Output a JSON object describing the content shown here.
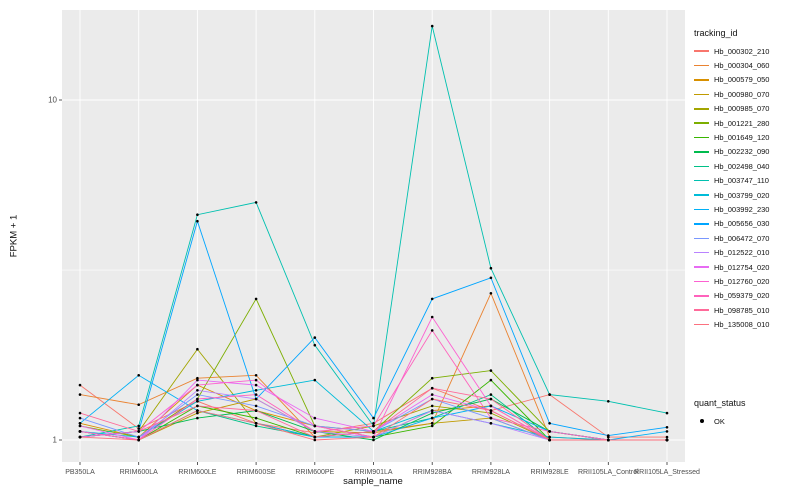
{
  "chart_data": {
    "type": "line",
    "title": "",
    "xlabel": "sample_name",
    "ylabel": "FPKM + 1",
    "yscale": "log10",
    "yticks": [
      1,
      10
    ],
    "y_minor": [
      3.162
    ],
    "ylim": [
      0.86,
      18.4
    ],
    "grid": true,
    "legend_position": "right",
    "colors": {
      "panel_bg": "#EBEBEB",
      "grid": "#FFFFFF",
      "point": "#000000",
      "tick": "#333333"
    },
    "legend": {
      "color_title": "tracking_id",
      "shape_title": "quant_status",
      "shape_items": [
        {
          "label": "OK"
        }
      ]
    },
    "categories": [
      "PB350LA",
      "RRIM600LA",
      "RRIM600LE",
      "RRIM600SE",
      "RRIM600PE",
      "RRIM901LA",
      "RRIM928BA",
      "RRIM928LA",
      "RRIM928LE",
      "RRII105LA_Control",
      "RRII105LA_Stressed"
    ],
    "series": [
      {
        "name": "Hb_000302_210",
        "color": "#F8766D",
        "values": [
          1.45,
          1.08,
          1.3,
          1.12,
          1.05,
          1.12,
          1.42,
          1.22,
          1.36,
          1.02,
          1.02
        ]
      },
      {
        "name": "Hb_000304_060",
        "color": "#EA8331",
        "values": [
          1.36,
          1.27,
          1.52,
          1.55,
          1.02,
          1.06,
          1.12,
          2.7,
          1.02,
          1.0,
          1.0
        ]
      },
      {
        "name": "Hb_000579_050",
        "color": "#D89000",
        "values": [
          1.12,
          1.02,
          1.45,
          1.22,
          1.1,
          1.02,
          1.22,
          1.26,
          1.0,
          1.0,
          1.0
        ]
      },
      {
        "name": "Hb_000980_070",
        "color": "#C09B00",
        "values": [
          1.06,
          1.0,
          1.2,
          1.32,
          1.06,
          1.05,
          1.12,
          1.16,
          1.0,
          1.0,
          1.0
        ]
      },
      {
        "name": "Hb_000985_070",
        "color": "#A3A500",
        "values": [
          1.02,
          1.06,
          1.85,
          1.12,
          1.02,
          1.1,
          1.26,
          1.2,
          1.0,
          1.0,
          1.0
        ]
      },
      {
        "name": "Hb_001221_280",
        "color": "#7CAE00",
        "values": [
          1.1,
          1.02,
          1.32,
          2.6,
          1.1,
          1.06,
          1.52,
          1.6,
          1.06,
          1.0,
          1.0
        ]
      },
      {
        "name": "Hb_001649_120",
        "color": "#39B600",
        "values": [
          1.06,
          1.0,
          1.26,
          1.16,
          1.02,
          1.02,
          1.1,
          1.5,
          1.0,
          1.0,
          1.0
        ]
      },
      {
        "name": "Hb_002232_090",
        "color": "#00BB4E",
        "values": [
          1.02,
          1.06,
          1.16,
          1.22,
          1.06,
          1.0,
          1.2,
          1.32,
          1.06,
          1.0,
          1.0
        ]
      },
      {
        "name": "Hb_002498_040",
        "color": "#00C087",
        "values": [
          1.06,
          1.0,
          1.22,
          1.1,
          1.02,
          1.06,
          1.16,
          1.36,
          1.0,
          1.0,
          1.0
        ]
      },
      {
        "name": "Hb_003747_110",
        "color": "#00C0AF",
        "values": [
          1.02,
          1.1,
          4.6,
          5.0,
          1.9,
          1.1,
          16.5,
          3.2,
          1.36,
          1.3,
          1.2
        ]
      },
      {
        "name": "Hb_003799_020",
        "color": "#00BCD8",
        "values": [
          1.06,
          1.02,
          1.3,
          1.4,
          1.5,
          1.06,
          1.22,
          1.12,
          1.02,
          1.0,
          1.0
        ]
      },
      {
        "name": "Hb_003992_230",
        "color": "#00B0F6",
        "values": [
          1.12,
          1.55,
          1.22,
          1.12,
          1.02,
          1.02,
          1.16,
          1.26,
          1.06,
          1.0,
          1.06
        ]
      },
      {
        "name": "Hb_005656_030",
        "color": "#00A5FF",
        "values": [
          1.02,
          1.06,
          4.4,
          1.32,
          2.0,
          1.16,
          2.6,
          3.0,
          1.12,
          1.03,
          1.09
        ]
      },
      {
        "name": "Hb_006472_070",
        "color": "#7997FF",
        "values": [
          1.16,
          1.02,
          1.36,
          1.26,
          1.1,
          1.06,
          1.32,
          1.16,
          1.0,
          1.0,
          1.0
        ]
      },
      {
        "name": "Hb_012522_010",
        "color": "#B983FF",
        "values": [
          1.06,
          1.0,
          1.4,
          1.32,
          1.06,
          1.02,
          1.22,
          1.12,
          1.0,
          1.0,
          1.0
        ]
      },
      {
        "name": "Hb_012754_020",
        "color": "#E76BF3",
        "values": [
          1.1,
          1.0,
          1.5,
          1.45,
          1.16,
          1.06,
          1.36,
          1.22,
          1.0,
          1.0,
          1.0
        ]
      },
      {
        "name": "Hb_012760_020",
        "color": "#FD61D1",
        "values": [
          1.02,
          1.06,
          1.45,
          1.5,
          1.1,
          1.02,
          2.3,
          1.26,
          1.0,
          1.0,
          1.0
        ]
      },
      {
        "name": "Hb_059379_020",
        "color": "#FF62BC",
        "values": [
          1.06,
          1.0,
          1.32,
          1.36,
          1.06,
          1.1,
          2.1,
          1.16,
          1.06,
          1.0,
          1.0
        ]
      },
      {
        "name": "Hb_098785_010",
        "color": "#FF6A9A",
        "values": [
          1.2,
          1.06,
          1.26,
          1.22,
          1.02,
          1.06,
          1.42,
          1.32,
          1.0,
          1.0,
          1.0
        ]
      },
      {
        "name": "Hb_135008_010",
        "color": "#FC717F",
        "values": [
          1.02,
          1.0,
          1.22,
          1.12,
          1.0,
          1.02,
          1.32,
          1.22,
          1.0,
          1.0,
          1.0
        ]
      }
    ]
  }
}
